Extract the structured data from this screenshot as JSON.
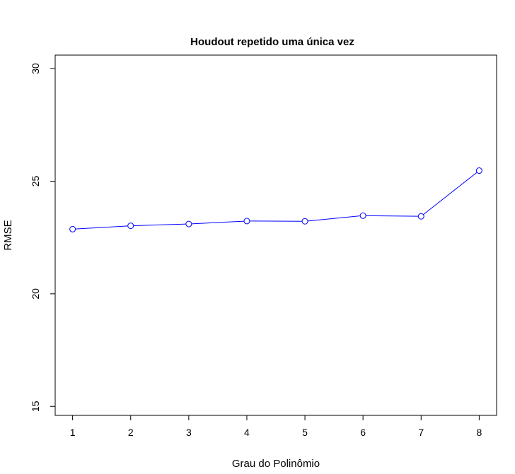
{
  "chart_data": {
    "type": "line",
    "title": "Houdout repetido uma única vez",
    "xlabel": "Grau do Polinômio",
    "ylabel": "RMSE",
    "x": [
      1,
      2,
      3,
      4,
      5,
      6,
      7,
      8
    ],
    "series": [
      {
        "values": [
          22.87,
          23.02,
          23.1,
          23.23,
          23.22,
          23.47,
          23.44,
          25.47
        ]
      }
    ],
    "xlim": [
      0.7,
      8.3
    ],
    "ylim": [
      14.6,
      30.6
    ],
    "xticks": [
      "1",
      "2",
      "3",
      "4",
      "5",
      "6",
      "7",
      "8"
    ],
    "yticks": [
      "15",
      "20",
      "25",
      "30"
    ],
    "line_color": "#0000ff",
    "marker": "open-circle",
    "grid": false,
    "legend": "none"
  }
}
